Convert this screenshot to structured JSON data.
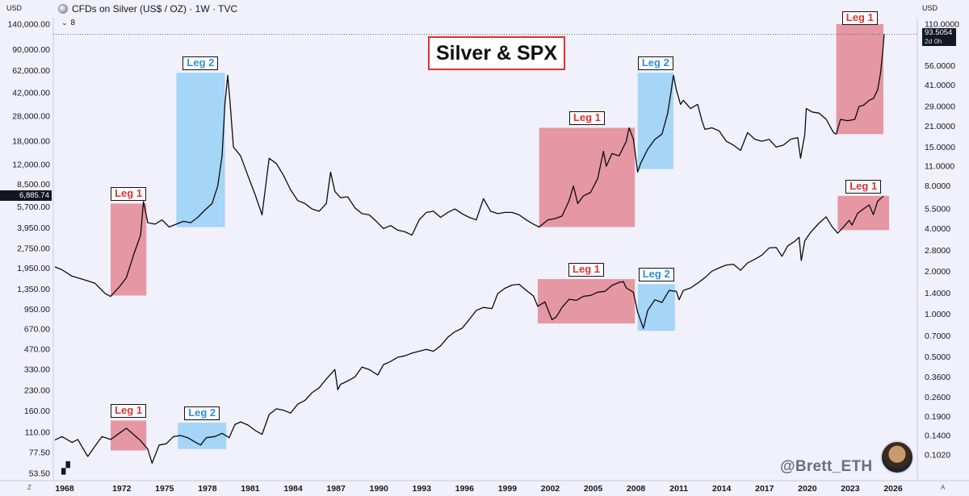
{
  "header": {
    "currency_left": "USD",
    "symbol_title": "CFDs on Silver (US$ / OZ) · 1W · TVC",
    "currency_right": "USD",
    "legend_count": "8",
    "price_value": "93.5054",
    "price_countdown": "2d 0h",
    "spx_value": "6,885.74",
    "corner_left": "Z",
    "corner_right": "A"
  },
  "chart_data": {
    "type": "line",
    "title": "Silver & SPX",
    "x_ticks": [
      "1968",
      "1972",
      "1975",
      "1978",
      "1981",
      "1984",
      "1987",
      "1990",
      "1993",
      "1996",
      "1999",
      "2002",
      "2005",
      "2008",
      "2011",
      "2014",
      "2017",
      "2020",
      "2023",
      "2026"
    ],
    "left_axis": {
      "label": "USD",
      "scale": "log",
      "ticks": [
        "140,000.00",
        "90,000.00",
        "62,000.00",
        "42,000.00",
        "28,000.00",
        "18,000.00",
        "12,000.00",
        "8,500.00",
        "5,700.00",
        "3,950.00",
        "2,750.00",
        "1,950.00",
        "1,350.00",
        "950.00",
        "670.00",
        "470.00",
        "330.00",
        "230.00",
        "160.00",
        "110.00",
        "77.50",
        "53.50"
      ]
    },
    "right_axis": {
      "label": "USD",
      "scale": "log",
      "ticks": [
        "110.0000",
        "56.0000",
        "41.0000",
        "29.0000",
        "21.0000",
        "15.0000",
        "11.0000",
        "8.0000",
        "5.5000",
        "4.0000",
        "2.8000",
        "2.0000",
        "1.4000",
        "1.0000",
        "0.7000",
        "0.5000",
        "0.3600",
        "0.2600",
        "0.1900",
        "0.1400",
        "0.1020"
      ]
    },
    "series": [
      {
        "name": "Silver (US$/OZ)",
        "axis": "right",
        "points": [
          [
            1968.0,
            2.15
          ],
          [
            1968.5,
            2.05
          ],
          [
            1969.2,
            1.85
          ],
          [
            1970.0,
            1.75
          ],
          [
            1970.8,
            1.65
          ],
          [
            1971.5,
            1.4
          ],
          [
            1971.9,
            1.33
          ],
          [
            1972.5,
            1.55
          ],
          [
            1973.0,
            1.8
          ],
          [
            1973.5,
            2.6
          ],
          [
            1974.0,
            3.6
          ],
          [
            1974.2,
            6.2
          ],
          [
            1974.5,
            4.4
          ],
          [
            1975.0,
            4.3
          ],
          [
            1975.5,
            4.6
          ],
          [
            1976.0,
            4.1
          ],
          [
            1976.5,
            4.3
          ],
          [
            1977.0,
            4.5
          ],
          [
            1977.5,
            4.4
          ],
          [
            1978.0,
            4.8
          ],
          [
            1978.5,
            5.4
          ],
          [
            1979.0,
            6.0
          ],
          [
            1979.4,
            8.0
          ],
          [
            1979.7,
            13.0
          ],
          [
            1979.9,
            30.0
          ],
          [
            1980.1,
            48.0
          ],
          [
            1980.25,
            32.0
          ],
          [
            1980.5,
            15.0
          ],
          [
            1981.0,
            13.0
          ],
          [
            1981.5,
            9.5
          ],
          [
            1982.0,
            7.0
          ],
          [
            1982.5,
            5.0
          ],
          [
            1983.0,
            12.5
          ],
          [
            1983.5,
            11.5
          ],
          [
            1984.0,
            9.5
          ],
          [
            1984.5,
            7.5
          ],
          [
            1985.0,
            6.3
          ],
          [
            1985.5,
            6.0
          ],
          [
            1986.0,
            5.5
          ],
          [
            1986.5,
            5.3
          ],
          [
            1987.0,
            6.0
          ],
          [
            1987.3,
            10.0
          ],
          [
            1987.6,
            7.3
          ],
          [
            1988.0,
            6.6
          ],
          [
            1988.5,
            6.7
          ],
          [
            1989.0,
            5.6
          ],
          [
            1989.5,
            5.1
          ],
          [
            1990.0,
            5.0
          ],
          [
            1990.5,
            4.5
          ],
          [
            1991.0,
            4.0
          ],
          [
            1991.5,
            4.2
          ],
          [
            1992.0,
            3.9
          ],
          [
            1992.5,
            3.8
          ],
          [
            1993.0,
            3.6
          ],
          [
            1993.5,
            4.6
          ],
          [
            1994.0,
            5.2
          ],
          [
            1994.5,
            5.3
          ],
          [
            1995.0,
            4.8
          ],
          [
            1995.5,
            5.2
          ],
          [
            1996.0,
            5.5
          ],
          [
            1996.5,
            5.1
          ],
          [
            1997.0,
            4.8
          ],
          [
            1997.5,
            4.6
          ],
          [
            1998.0,
            6.5
          ],
          [
            1998.5,
            5.3
          ],
          [
            1999.0,
            5.1
          ],
          [
            1999.5,
            5.2
          ],
          [
            2000.0,
            5.2
          ],
          [
            2000.5,
            5.0
          ],
          [
            2001.0,
            4.6
          ],
          [
            2001.5,
            4.3
          ],
          [
            2001.9,
            4.1
          ],
          [
            2002.5,
            4.6
          ],
          [
            2003.0,
            4.7
          ],
          [
            2003.5,
            4.9
          ],
          [
            2004.0,
            6.3
          ],
          [
            2004.3,
            8.0
          ],
          [
            2004.6,
            6.0
          ],
          [
            2005.0,
            6.8
          ],
          [
            2005.5,
            7.2
          ],
          [
            2006.0,
            9.0
          ],
          [
            2006.4,
            14.0
          ],
          [
            2006.6,
            11.0
          ],
          [
            2007.0,
            13.5
          ],
          [
            2007.5,
            13.0
          ],
          [
            2008.0,
            16.5
          ],
          [
            2008.2,
            20.5
          ],
          [
            2008.5,
            17.0
          ],
          [
            2008.8,
            10.0
          ],
          [
            2009.0,
            11.5
          ],
          [
            2009.5,
            14.5
          ],
          [
            2010.0,
            17.0
          ],
          [
            2010.5,
            18.5
          ],
          [
            2010.9,
            26.0
          ],
          [
            2011.1,
            35.0
          ],
          [
            2011.3,
            48.0
          ],
          [
            2011.5,
            38.0
          ],
          [
            2011.8,
            30.0
          ],
          [
            2012.0,
            32.0
          ],
          [
            2012.5,
            28.0
          ],
          [
            2013.0,
            30.0
          ],
          [
            2013.3,
            23.0
          ],
          [
            2013.5,
            20.0
          ],
          [
            2014.0,
            20.5
          ],
          [
            2014.5,
            19.5
          ],
          [
            2015.0,
            16.5
          ],
          [
            2015.5,
            15.5
          ],
          [
            2016.0,
            14.2
          ],
          [
            2016.5,
            19.0
          ],
          [
            2017.0,
            17.0
          ],
          [
            2017.5,
            16.5
          ],
          [
            2018.0,
            17.0
          ],
          [
            2018.5,
            15.0
          ],
          [
            2019.0,
            15.5
          ],
          [
            2019.5,
            17.0
          ],
          [
            2020.0,
            17.5
          ],
          [
            2020.2,
            12.5
          ],
          [
            2020.5,
            18.5
          ],
          [
            2020.6,
            28.0
          ],
          [
            2021.0,
            26.5
          ],
          [
            2021.5,
            26.0
          ],
          [
            2022.0,
            23.5
          ],
          [
            2022.5,
            19.0
          ],
          [
            2022.7,
            18.5
          ],
          [
            2023.0,
            23.5
          ],
          [
            2023.5,
            23.0
          ],
          [
            2024.0,
            23.5
          ],
          [
            2024.3,
            29.0
          ],
          [
            2024.6,
            29.5
          ],
          [
            2025.0,
            32.0
          ],
          [
            2025.3,
            33.0
          ],
          [
            2025.6,
            38.0
          ],
          [
            2025.8,
            50.0
          ],
          [
            2025.95,
            70.0
          ],
          [
            2026.05,
            93.5
          ]
        ]
      },
      {
        "name": "S&P 500",
        "axis": "left",
        "points": [
          [
            1968.0,
            96
          ],
          [
            1968.5,
            102
          ],
          [
            1969.2,
            92
          ],
          [
            1969.6,
            97
          ],
          [
            1970.3,
            72
          ],
          [
            1970.8,
            86
          ],
          [
            1971.3,
            102
          ],
          [
            1971.9,
            97
          ],
          [
            1972.5,
            108
          ],
          [
            1973.0,
            118
          ],
          [
            1973.5,
            106
          ],
          [
            1974.0,
            95
          ],
          [
            1974.5,
            82
          ],
          [
            1974.8,
            64
          ],
          [
            1975.3,
            88
          ],
          [
            1975.8,
            90
          ],
          [
            1976.3,
            102
          ],
          [
            1976.8,
            104
          ],
          [
            1977.3,
            100
          ],
          [
            1977.8,
            93
          ],
          [
            1978.2,
            88
          ],
          [
            1978.6,
            100
          ],
          [
            1979.2,
            102
          ],
          [
            1979.7,
            108
          ],
          [
            1980.2,
            100
          ],
          [
            1980.6,
            126
          ],
          [
            1981.0,
            132
          ],
          [
            1981.5,
            125
          ],
          [
            1982.0,
            114
          ],
          [
            1982.5,
            106
          ],
          [
            1983.0,
            150
          ],
          [
            1983.5,
            166
          ],
          [
            1984.0,
            162
          ],
          [
            1984.5,
            154
          ],
          [
            1985.0,
            180
          ],
          [
            1985.5,
            192
          ],
          [
            1986.0,
            220
          ],
          [
            1986.5,
            240
          ],
          [
            1987.0,
            280
          ],
          [
            1987.6,
            330
          ],
          [
            1987.8,
            232
          ],
          [
            1988.0,
            255
          ],
          [
            1988.5,
            270
          ],
          [
            1989.0,
            290
          ],
          [
            1989.5,
            345
          ],
          [
            1990.0,
            330
          ],
          [
            1990.6,
            300
          ],
          [
            1991.0,
            360
          ],
          [
            1991.5,
            380
          ],
          [
            1992.0,
            410
          ],
          [
            1992.5,
            420
          ],
          [
            1993.0,
            440
          ],
          [
            1993.5,
            455
          ],
          [
            1994.0,
            470
          ],
          [
            1994.5,
            455
          ],
          [
            1995.0,
            500
          ],
          [
            1995.5,
            580
          ],
          [
            1996.0,
            640
          ],
          [
            1996.5,
            680
          ],
          [
            1997.0,
            790
          ],
          [
            1997.5,
            930
          ],
          [
            1998.0,
            980
          ],
          [
            1998.6,
            960
          ],
          [
            1999.0,
            1250
          ],
          [
            1999.5,
            1370
          ],
          [
            2000.0,
            1450
          ],
          [
            2000.5,
            1470
          ],
          [
            2001.0,
            1320
          ],
          [
            2001.5,
            1200
          ],
          [
            2001.8,
            1000
          ],
          [
            2002.3,
            1080
          ],
          [
            2002.8,
            790
          ],
          [
            2003.1,
            830
          ],
          [
            2003.5,
            980
          ],
          [
            2004.0,
            1130
          ],
          [
            2004.5,
            1110
          ],
          [
            2005.0,
            1190
          ],
          [
            2005.5,
            1210
          ],
          [
            2006.0,
            1280
          ],
          [
            2006.5,
            1300
          ],
          [
            2007.0,
            1440
          ],
          [
            2007.5,
            1520
          ],
          [
            2007.8,
            1540
          ],
          [
            2008.0,
            1380
          ],
          [
            2008.5,
            1280
          ],
          [
            2008.8,
            900
          ],
          [
            2009.2,
            680
          ],
          [
            2009.5,
            930
          ],
          [
            2010.0,
            1120
          ],
          [
            2010.5,
            1070
          ],
          [
            2011.0,
            1320
          ],
          [
            2011.5,
            1300
          ],
          [
            2011.7,
            1120
          ],
          [
            2012.0,
            1320
          ],
          [
            2012.5,
            1380
          ],
          [
            2013.0,
            1500
          ],
          [
            2013.5,
            1650
          ],
          [
            2014.0,
            1850
          ],
          [
            2014.5,
            1960
          ],
          [
            2015.0,
            2060
          ],
          [
            2015.5,
            2090
          ],
          [
            2016.0,
            1880
          ],
          [
            2016.5,
            2140
          ],
          [
            2017.0,
            2280
          ],
          [
            2017.5,
            2450
          ],
          [
            2018.0,
            2780
          ],
          [
            2018.5,
            2800
          ],
          [
            2018.9,
            2400
          ],
          [
            2019.3,
            2880
          ],
          [
            2019.8,
            3120
          ],
          [
            2020.1,
            3350
          ],
          [
            2020.25,
            2230
          ],
          [
            2020.5,
            3150
          ],
          [
            2020.9,
            3650
          ],
          [
            2021.5,
            4300
          ],
          [
            2021.99,
            4790
          ],
          [
            2022.4,
            4050
          ],
          [
            2022.8,
            3600
          ],
          [
            2023.2,
            4000
          ],
          [
            2023.6,
            4500
          ],
          [
            2023.8,
            4150
          ],
          [
            2024.2,
            5100
          ],
          [
            2024.6,
            5500
          ],
          [
            2025.0,
            5900
          ],
          [
            2025.3,
            4980
          ],
          [
            2025.6,
            6300
          ],
          [
            2026.0,
            6885.74
          ]
        ]
      }
    ],
    "boxes": [
      {
        "label": "Leg 1",
        "color": "red",
        "x0": 1971.9,
        "x1": 1974.4,
        "axis": "right",
        "y0": 1.35,
        "y1": 6.0
      },
      {
        "label": "Leg 2",
        "color": "blue",
        "x0": 1976.5,
        "x1": 1979.9,
        "axis": "right",
        "y0": 4.1,
        "y1": 50.0
      },
      {
        "label": "Leg 1",
        "color": "red",
        "x0": 2001.9,
        "x1": 2008.6,
        "axis": "right",
        "y0": 4.1,
        "y1": 20.5
      },
      {
        "label": "Leg 2",
        "color": "blue",
        "x0": 2008.8,
        "x1": 2011.3,
        "axis": "right",
        "y0": 10.5,
        "y1": 50.0
      },
      {
        "label": "Leg 1",
        "color": "red",
        "x0": 2022.7,
        "x1": 2026.0,
        "axis": "right",
        "y0": 18.5,
        "y1": 110.0
      },
      {
        "label": "Leg 1",
        "color": "red",
        "x0": 1971.9,
        "x1": 1974.4,
        "axis": "left",
        "y0": 80,
        "y1": 135
      },
      {
        "label": "Leg 2",
        "color": "blue",
        "x0": 1976.6,
        "x1": 1980.0,
        "axis": "left",
        "y0": 82,
        "y1": 130
      },
      {
        "label": "Leg 1",
        "color": "red",
        "x0": 2001.8,
        "x1": 2008.6,
        "axis": "left",
        "y0": 740,
        "y1": 1610
      },
      {
        "label": "Leg 2",
        "color": "blue",
        "x0": 2008.8,
        "x1": 2011.4,
        "axis": "left",
        "y0": 650,
        "y1": 1470
      },
      {
        "label": "Leg 1",
        "color": "red",
        "x0": 2022.8,
        "x1": 2026.4,
        "axis": "left",
        "y0": 3800,
        "y1": 6920
      }
    ]
  },
  "watermark": "@Brett_ETH"
}
